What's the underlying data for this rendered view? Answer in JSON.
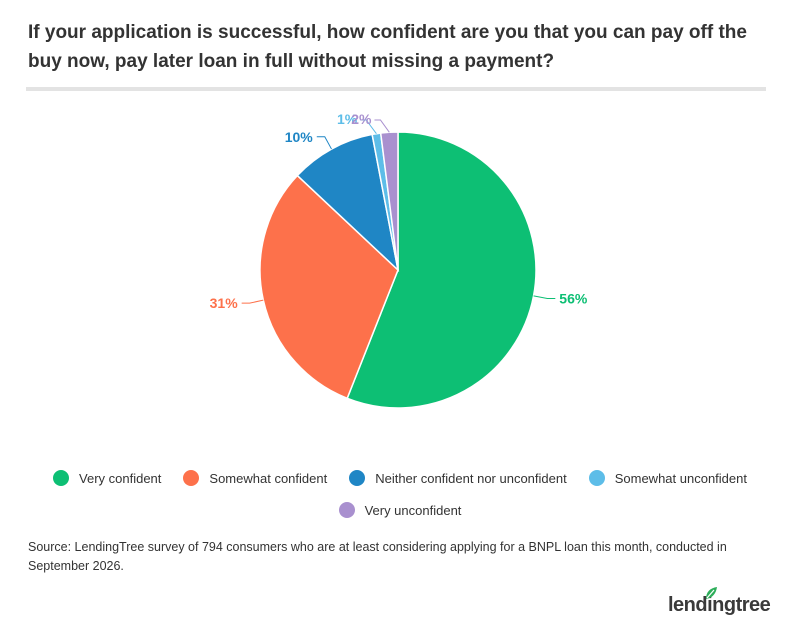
{
  "header": {
    "title": "If your application is successful, how confident are you that you can pay off the buy now, pay later loan in full without missing a payment?"
  },
  "chart_data": {
    "type": "pie",
    "title": "If your application is successful, how confident are you that you can pay off the buy now, pay later loan in full without missing a payment?",
    "slices": [
      {
        "label": "Very confident",
        "value": 56,
        "display": "56%",
        "color": "#0dbf74"
      },
      {
        "label": "Somewhat confident",
        "value": 31,
        "display": "31%",
        "color": "#fd714b"
      },
      {
        "label": "Neither confident nor unconfident",
        "value": 10,
        "display": "10%",
        "color": "#1f86c5"
      },
      {
        "label": "Somewhat unconfident",
        "value": 1,
        "display": "1%",
        "color": "#5dbde8"
      },
      {
        "label": "Very unconfident",
        "value": 2,
        "display": "2%",
        "color": "#a990cf"
      }
    ],
    "legend_position": "bottom"
  },
  "footer": {
    "source": "Source: LendingTree survey of 794 consumers who are at least considering applying for a BNPL loan this month, conducted in September 2026.",
    "logo_text": "lendingtree"
  },
  "colors": {
    "logo_leaf": "#2dae5a",
    "logo_text": "#3a3a3a"
  }
}
